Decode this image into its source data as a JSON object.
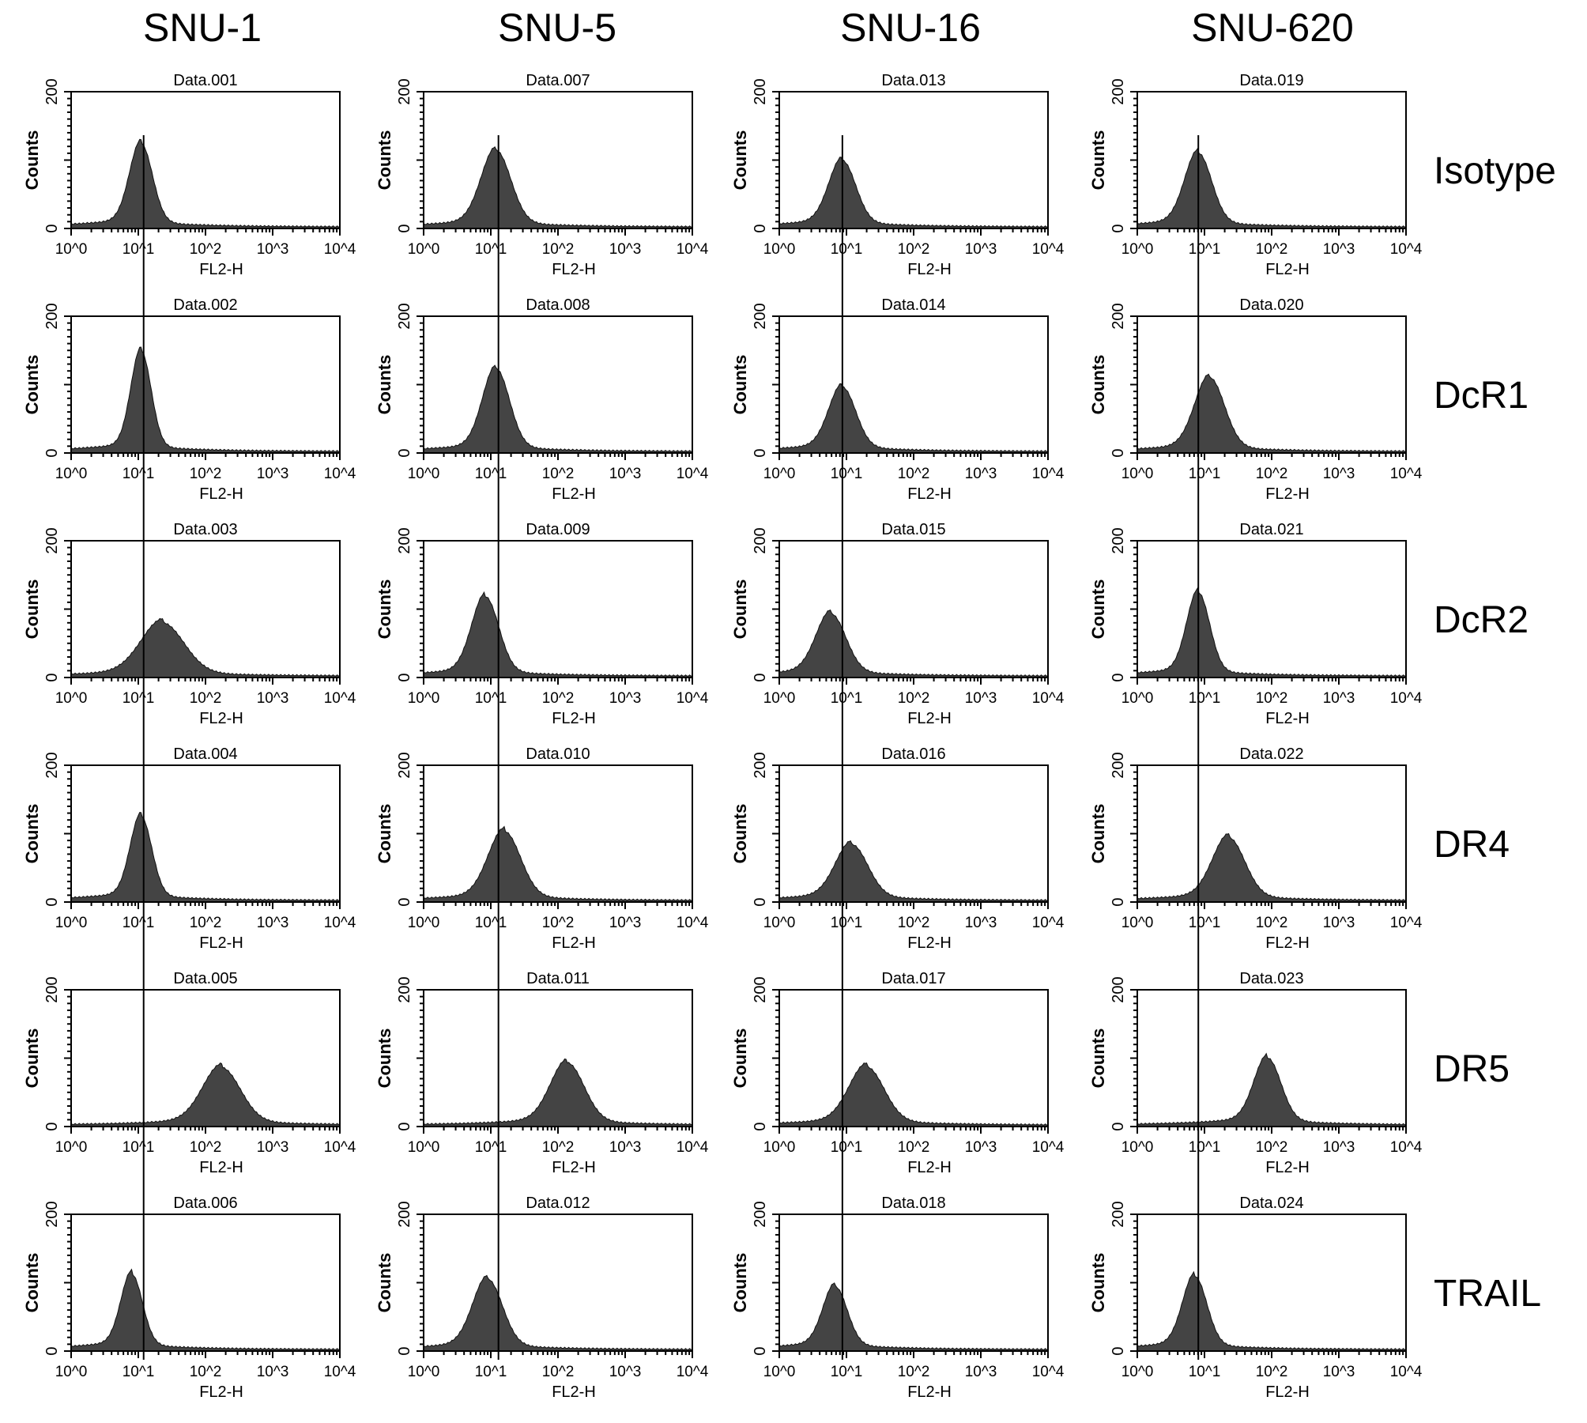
{
  "chart_data": {
    "type": "histogram-grid",
    "column_headers": [
      "SNU-1",
      "SNU-5",
      "SNU-16",
      "SNU-620"
    ],
    "row_labels": [
      "Isotype",
      "DcR1",
      "DcR2",
      "DR4",
      "DR5",
      "TRAIL"
    ],
    "xlabel": "FL2-H",
    "ylabel": "Counts",
    "x_scale": "log",
    "xlim": [
      1,
      10000
    ],
    "x_ticks": [
      "10^0",
      "10^1",
      "10^2",
      "10^3",
      "10^4"
    ],
    "ylim": [
      0,
      200
    ],
    "y_ticks": [
      "0",
      "200"
    ],
    "fill_color": "#444444",
    "reference_line_fl2": [
      12,
      13,
      8.7,
      8.1
    ],
    "panels": [
      [
        {
          "title": "Data.001",
          "peak_fl2": 11,
          "peak_counts": 114,
          "spread_decades": 0.17
        },
        {
          "title": "Data.002",
          "peak_fl2": 11,
          "peak_counts": 139,
          "spread_decades": 0.15
        },
        {
          "title": "Data.003",
          "peak_fl2": 23,
          "peak_counts": 70,
          "spread_decades": 0.32
        },
        {
          "title": "Data.004",
          "peak_fl2": 11,
          "peak_counts": 115,
          "spread_decades": 0.16
        },
        {
          "title": "Data.005",
          "peak_fl2": 174,
          "peak_counts": 76,
          "spread_decades": 0.28
        },
        {
          "title": "Data.006",
          "peak_fl2": 8,
          "peak_counts": 102,
          "spread_decades": 0.16
        }
      ],
      [
        {
          "title": "Data.007",
          "peak_fl2": 12,
          "peak_counts": 104,
          "spread_decades": 0.22
        },
        {
          "title": "Data.008",
          "peak_fl2": 12,
          "peak_counts": 113,
          "spread_decades": 0.2
        },
        {
          "title": "Data.009",
          "peak_fl2": 8.3,
          "peak_counts": 108,
          "spread_decades": 0.2
        },
        {
          "title": "Data.010",
          "peak_fl2": 16,
          "peak_counts": 93,
          "spread_decades": 0.24
        },
        {
          "title": "Data.011",
          "peak_fl2": 138,
          "peak_counts": 83,
          "spread_decades": 0.25
        },
        {
          "title": "Data.012",
          "peak_fl2": 9,
          "peak_counts": 95,
          "spread_decades": 0.22
        }
      ],
      [
        {
          "title": "Data.013",
          "peak_fl2": 8.7,
          "peak_counts": 89,
          "spread_decades": 0.2
        },
        {
          "title": "Data.014",
          "peak_fl2": 8.7,
          "peak_counts": 86,
          "spread_decades": 0.2
        },
        {
          "title": "Data.015",
          "peak_fl2": 5.9,
          "peak_counts": 83,
          "spread_decades": 0.22
        },
        {
          "title": "Data.016",
          "peak_fl2": 12,
          "peak_counts": 74,
          "spread_decades": 0.24
        },
        {
          "title": "Data.017",
          "peak_fl2": 20,
          "peak_counts": 77,
          "spread_decades": 0.26
        },
        {
          "title": "Data.018",
          "peak_fl2": 6.8,
          "peak_counts": 84,
          "spread_decades": 0.18
        }
      ],
      [
        {
          "title": "Data.019",
          "peak_fl2": 8.1,
          "peak_counts": 100,
          "spread_decades": 0.2
        },
        {
          "title": "Data.020",
          "peak_fl2": 12,
          "peak_counts": 100,
          "spread_decades": 0.22
        },
        {
          "title": "Data.021",
          "peak_fl2": 8.1,
          "peak_counts": 114,
          "spread_decades": 0.17
        },
        {
          "title": "Data.022",
          "peak_fl2": 23,
          "peak_counts": 84,
          "spread_decades": 0.24
        },
        {
          "title": "Data.023",
          "peak_fl2": 87,
          "peak_counts": 90,
          "spread_decades": 0.2
        },
        {
          "title": "Data.024",
          "peak_fl2": 7.2,
          "peak_counts": 99,
          "spread_decades": 0.18
        }
      ]
    ]
  }
}
